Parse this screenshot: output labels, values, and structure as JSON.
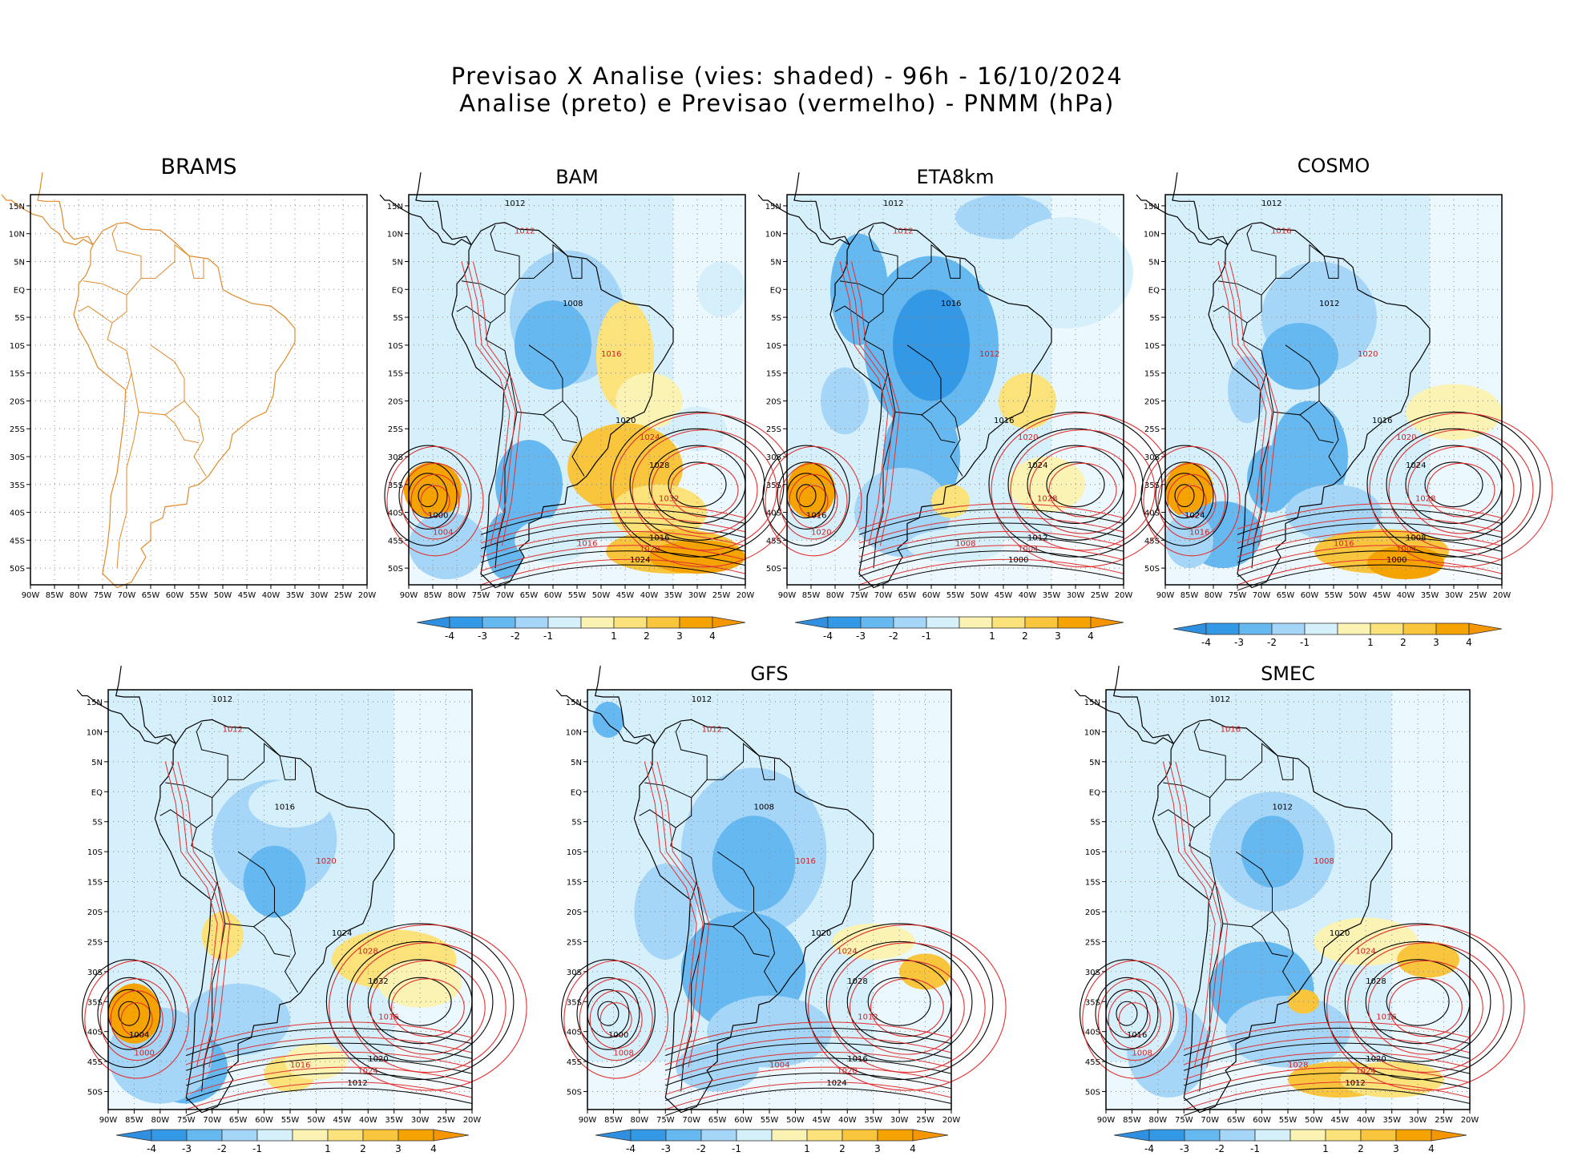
{
  "title_line1": "Previsao X Analise (vies: shaded) - 96h - 16/10/2024",
  "title_line2": "Analise (preto) e Previsao (vermelho) - PNMM (hPa)",
  "lat_labels": [
    "15N",
    "10N",
    "5N",
    "EQ",
    "5S",
    "10S",
    "15S",
    "20S",
    "25S",
    "30S",
    "35S",
    "40S",
    "45S",
    "50S"
  ],
  "lon_labels": [
    "90W",
    "85W",
    "80W",
    "75W",
    "70W",
    "65W",
    "60W",
    "55W",
    "50W",
    "45W",
    "40W",
    "35W",
    "30W",
    "25W",
    "20W"
  ],
  "colorbar_labels": [
    "-4",
    "-3",
    "-2",
    "-1",
    "1",
    "2",
    "3",
    "4"
  ],
  "colors": {
    "neg4": "#3399e6",
    "neg3": "#66b8f0",
    "neg2": "#a6d6f7",
    "neg1": "#d6f0fb",
    "pos1": "#fbf3b3",
    "pos2": "#fbe27a",
    "pos3": "#f9c53d",
    "pos4": "#f5a300",
    "analysis_contour": "#000000",
    "forecast_contour": "#e03030",
    "brams_coast": "#e08a2a"
  },
  "panels": [
    {
      "id": "brams",
      "title": "BRAMS",
      "empty": true,
      "has_colorbar": false,
      "contours": []
    },
    {
      "id": "bam",
      "title": "BAM",
      "empty": false,
      "has_colorbar": true,
      "contours": [
        {
          "t": "1012"
        },
        {
          "t": "1012"
        },
        {
          "t": "1008"
        },
        {
          "t": "1016"
        },
        {
          "t": "1020"
        },
        {
          "t": "1024"
        },
        {
          "t": "1028"
        },
        {
          "t": "1032"
        },
        {
          "t": "1016"
        },
        {
          "t": "1020"
        },
        {
          "t": "1024"
        },
        {
          "t": "1004"
        },
        {
          "t": "1000"
        },
        {
          "t": "1016"
        }
      ]
    },
    {
      "id": "eta8km",
      "title": "ETA8km",
      "empty": false,
      "has_colorbar": true,
      "contours": [
        {
          "t": "1012"
        },
        {
          "t": "1012"
        },
        {
          "t": "1016"
        },
        {
          "t": "1012"
        },
        {
          "t": "1016"
        },
        {
          "t": "1020"
        },
        {
          "t": "1024"
        },
        {
          "t": "1028"
        },
        {
          "t": "1012"
        },
        {
          "t": "1004"
        },
        {
          "t": "1000"
        },
        {
          "t": "1020"
        },
        {
          "t": "1016"
        },
        {
          "t": "1008"
        }
      ]
    },
    {
      "id": "cosmo",
      "title": "COSMO",
      "empty": false,
      "has_colorbar": true,
      "contours": [
        {
          "t": "1012"
        },
        {
          "t": "1016"
        },
        {
          "t": "1012"
        },
        {
          "t": "1020"
        },
        {
          "t": "1016"
        },
        {
          "t": "1020"
        },
        {
          "t": "1024"
        },
        {
          "t": "1028"
        },
        {
          "t": "1008"
        },
        {
          "t": "1004"
        },
        {
          "t": "1000"
        },
        {
          "t": "1016"
        },
        {
          "t": "1024"
        },
        {
          "t": "1016"
        }
      ]
    },
    {
      "id": "panel5",
      "title": "",
      "empty": false,
      "has_colorbar": true,
      "contours": [
        {
          "t": "1012"
        },
        {
          "t": "1012"
        },
        {
          "t": "1016"
        },
        {
          "t": "1020"
        },
        {
          "t": "1024"
        },
        {
          "t": "1028"
        },
        {
          "t": "1032"
        },
        {
          "t": "1016"
        },
        {
          "t": "1020"
        },
        {
          "t": "1024"
        },
        {
          "t": "1012"
        },
        {
          "t": "1000"
        },
        {
          "t": "1004"
        },
        {
          "t": "1016"
        }
      ]
    },
    {
      "id": "gfs",
      "title": "GFS",
      "empty": false,
      "has_colorbar": true,
      "contours": [
        {
          "t": "1012"
        },
        {
          "t": "1012"
        },
        {
          "t": "1008"
        },
        {
          "t": "1016"
        },
        {
          "t": "1020"
        },
        {
          "t": "1024"
        },
        {
          "t": "1028"
        },
        {
          "t": "1012"
        },
        {
          "t": "1016"
        },
        {
          "t": "1020"
        },
        {
          "t": "1024"
        },
        {
          "t": "1008"
        },
        {
          "t": "1000"
        },
        {
          "t": "1004"
        }
      ]
    },
    {
      "id": "smec",
      "title": "SMEC",
      "empty": false,
      "has_colorbar": true,
      "contours": [
        {
          "t": "1012"
        },
        {
          "t": "1016"
        },
        {
          "t": "1012"
        },
        {
          "t": "1008"
        },
        {
          "t": "1020"
        },
        {
          "t": "1024"
        },
        {
          "t": "1028"
        },
        {
          "t": "1016"
        },
        {
          "t": "1020"
        },
        {
          "t": "1024"
        },
        {
          "t": "1012"
        },
        {
          "t": "1008"
        },
        {
          "t": "1016"
        },
        {
          "t": "1028"
        }
      ]
    }
  ]
}
